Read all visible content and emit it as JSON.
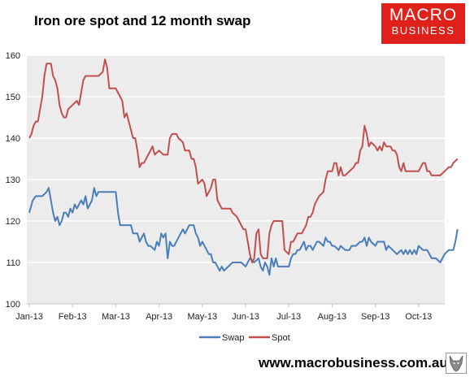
{
  "title": "Iron ore spot and 12 month swap",
  "logo": {
    "line1": "MACRO",
    "line2": "BUSINESS",
    "color": "#e0201b"
  },
  "footer": {
    "url": "www.macrobusiness.com.au"
  },
  "mascot_icon": "wolf-icon",
  "chart_data": {
    "type": "line",
    "title": "Iron ore spot and 12 month swap",
    "ylim": [
      100,
      160
    ],
    "yticks": [
      100,
      110,
      120,
      130,
      140,
      150,
      160
    ],
    "xlim": [
      0,
      9.7
    ],
    "xtick_labels": [
      "Jan-13",
      "Feb-13",
      "Mar-13",
      "Apr-13",
      "May-13",
      "Jun-13",
      "Jul-13",
      "Aug-13",
      "Sep-13",
      "Oct-13"
    ],
    "grid": true,
    "legend": "bottom-center",
    "series": [
      {
        "name": "Swap",
        "color": "#4a7ebb",
        "points": [
          [
            0.0,
            122
          ],
          [
            0.08,
            125
          ],
          [
            0.15,
            126
          ],
          [
            0.3,
            126
          ],
          [
            0.4,
            127
          ],
          [
            0.45,
            128
          ],
          [
            0.5,
            125
          ],
          [
            0.55,
            122
          ],
          [
            0.6,
            120
          ],
          [
            0.65,
            121
          ],
          [
            0.7,
            119
          ],
          [
            0.75,
            120
          ],
          [
            0.8,
            122
          ],
          [
            0.85,
            122
          ],
          [
            0.9,
            121
          ],
          [
            0.95,
            123
          ],
          [
            1.0,
            122
          ],
          [
            1.05,
            124
          ],
          [
            1.1,
            123
          ],
          [
            1.15,
            124
          ],
          [
            1.2,
            125
          ],
          [
            1.25,
            124
          ],
          [
            1.3,
            126
          ],
          [
            1.35,
            123
          ],
          [
            1.4,
            124
          ],
          [
            1.45,
            125
          ],
          [
            1.5,
            128
          ],
          [
            1.55,
            126
          ],
          [
            1.6,
            127
          ],
          [
            1.65,
            127
          ],
          [
            1.9,
            127
          ],
          [
            2.0,
            127
          ],
          [
            2.05,
            122
          ],
          [
            2.1,
            119
          ],
          [
            2.2,
            119
          ],
          [
            2.35,
            119
          ],
          [
            2.4,
            117
          ],
          [
            2.5,
            117
          ],
          [
            2.55,
            115
          ],
          [
            2.6,
            116
          ],
          [
            2.65,
            117
          ],
          [
            2.7,
            115
          ],
          [
            2.75,
            114
          ],
          [
            2.8,
            114
          ],
          [
            2.9,
            113
          ],
          [
            2.95,
            115
          ],
          [
            3.0,
            114
          ],
          [
            3.05,
            117
          ],
          [
            3.1,
            116
          ],
          [
            3.15,
            117
          ],
          [
            3.2,
            111
          ],
          [
            3.25,
            115
          ],
          [
            3.3,
            114
          ],
          [
            3.35,
            114
          ],
          [
            3.45,
            116
          ],
          [
            3.5,
            117
          ],
          [
            3.55,
            118
          ],
          [
            3.6,
            117
          ],
          [
            3.65,
            118
          ],
          [
            3.7,
            119
          ],
          [
            3.8,
            119
          ],
          [
            3.85,
            117
          ],
          [
            3.9,
            116
          ],
          [
            3.95,
            114
          ],
          [
            4.0,
            115
          ],
          [
            4.05,
            114
          ],
          [
            4.1,
            113
          ],
          [
            4.15,
            112
          ],
          [
            4.2,
            112
          ],
          [
            4.25,
            110
          ],
          [
            4.3,
            110
          ],
          [
            4.4,
            108
          ],
          [
            4.45,
            109
          ],
          [
            4.5,
            108
          ],
          [
            4.6,
            109
          ],
          [
            4.7,
            110
          ],
          [
            4.8,
            110
          ],
          [
            4.9,
            110
          ],
          [
            5.0,
            109
          ],
          [
            5.05,
            110
          ],
          [
            5.1,
            111
          ],
          [
            5.2,
            110
          ],
          [
            5.3,
            111
          ],
          [
            5.35,
            109
          ],
          [
            5.4,
            108
          ],
          [
            5.45,
            110
          ],
          [
            5.5,
            109
          ],
          [
            5.55,
            107
          ],
          [
            5.6,
            111
          ],
          [
            5.65,
            109
          ],
          [
            5.7,
            111
          ],
          [
            5.75,
            109
          ],
          [
            5.8,
            109
          ],
          [
            5.9,
            109
          ],
          [
            6.0,
            109
          ],
          [
            6.05,
            111
          ],
          [
            6.1,
            112
          ],
          [
            6.15,
            112
          ],
          [
            6.2,
            113
          ],
          [
            6.25,
            113
          ],
          [
            6.3,
            114
          ],
          [
            6.35,
            115
          ],
          [
            6.4,
            113
          ],
          [
            6.45,
            114
          ],
          [
            6.5,
            114
          ],
          [
            6.55,
            113
          ],
          [
            6.6,
            114
          ],
          [
            6.65,
            115
          ],
          [
            6.7,
            115
          ],
          [
            6.8,
            114
          ],
          [
            6.85,
            116
          ],
          [
            6.9,
            115
          ],
          [
            6.95,
            115
          ],
          [
            7.0,
            114
          ],
          [
            7.05,
            114
          ],
          [
            7.15,
            113
          ],
          [
            7.2,
            114
          ],
          [
            7.3,
            113
          ],
          [
            7.4,
            113
          ],
          [
            7.45,
            114
          ],
          [
            7.55,
            114
          ],
          [
            7.65,
            115
          ],
          [
            7.7,
            115
          ],
          [
            7.75,
            116
          ],
          [
            7.8,
            114
          ],
          [
            7.85,
            116
          ],
          [
            7.9,
            115
          ],
          [
            8.0,
            114
          ],
          [
            8.05,
            115
          ],
          [
            8.1,
            115
          ],
          [
            8.2,
            115
          ],
          [
            8.25,
            113
          ],
          [
            8.3,
            114
          ],
          [
            8.4,
            113
          ],
          [
            8.5,
            112
          ],
          [
            8.6,
            113
          ],
          [
            8.65,
            112
          ],
          [
            8.7,
            113
          ],
          [
            8.75,
            112
          ],
          [
            8.8,
            113
          ],
          [
            8.85,
            112
          ],
          [
            8.9,
            113
          ],
          [
            8.95,
            112
          ],
          [
            9.0,
            114
          ],
          [
            9.1,
            113
          ],
          [
            9.2,
            113
          ],
          [
            9.3,
            111
          ],
          [
            9.4,
            111
          ],
          [
            9.5,
            110
          ],
          [
            9.55,
            111
          ],
          [
            9.6,
            112
          ],
          [
            9.7,
            113
          ],
          [
            9.8,
            113
          ],
          [
            9.85,
            115
          ],
          [
            9.9,
            118
          ]
        ]
      },
      {
        "name": "Spot",
        "color": "#c0504d",
        "points": [
          [
            0.0,
            140
          ],
          [
            0.05,
            141
          ],
          [
            0.1,
            143
          ],
          [
            0.15,
            144
          ],
          [
            0.2,
            144
          ],
          [
            0.25,
            147
          ],
          [
            0.3,
            150
          ],
          [
            0.35,
            155
          ],
          [
            0.4,
            158
          ],
          [
            0.5,
            158
          ],
          [
            0.55,
            155
          ],
          [
            0.6,
            154
          ],
          [
            0.65,
            152
          ],
          [
            0.7,
            148
          ],
          [
            0.75,
            146
          ],
          [
            0.8,
            145
          ],
          [
            0.85,
            145
          ],
          [
            0.9,
            147
          ],
          [
            1.0,
            148
          ],
          [
            1.1,
            149
          ],
          [
            1.15,
            148
          ],
          [
            1.2,
            151
          ],
          [
            1.25,
            154
          ],
          [
            1.3,
            155
          ],
          [
            1.35,
            155
          ],
          [
            1.4,
            155
          ],
          [
            1.5,
            155
          ],
          [
            1.55,
            155
          ],
          [
            1.6,
            155
          ],
          [
            1.7,
            156
          ],
          [
            1.75,
            159
          ],
          [
            1.8,
            157
          ],
          [
            1.85,
            152
          ],
          [
            1.9,
            152
          ],
          [
            2.0,
            152
          ],
          [
            2.1,
            150
          ],
          [
            2.15,
            149
          ],
          [
            2.2,
            145
          ],
          [
            2.25,
            146
          ],
          [
            2.3,
            144
          ],
          [
            2.35,
            142
          ],
          [
            2.4,
            140
          ],
          [
            2.45,
            140
          ],
          [
            2.5,
            137
          ],
          [
            2.55,
            133
          ],
          [
            2.6,
            134
          ],
          [
            2.65,
            134
          ],
          [
            2.75,
            136
          ],
          [
            2.8,
            137
          ],
          [
            2.85,
            138
          ],
          [
            2.9,
            136
          ],
          [
            3.0,
            137
          ],
          [
            3.1,
            136
          ],
          [
            3.2,
            136
          ],
          [
            3.25,
            140
          ],
          [
            3.3,
            141
          ],
          [
            3.35,
            141
          ],
          [
            3.4,
            141
          ],
          [
            3.45,
            140
          ],
          [
            3.55,
            139
          ],
          [
            3.6,
            137
          ],
          [
            3.7,
            137
          ],
          [
            3.75,
            135
          ],
          [
            3.8,
            135
          ],
          [
            3.85,
            133
          ],
          [
            3.9,
            129
          ],
          [
            4.0,
            130
          ],
          [
            4.05,
            129
          ],
          [
            4.1,
            126
          ],
          [
            4.15,
            127
          ],
          [
            4.2,
            128
          ],
          [
            4.25,
            130
          ],
          [
            4.3,
            130
          ],
          [
            4.35,
            125
          ],
          [
            4.45,
            123
          ],
          [
            4.55,
            123
          ],
          [
            4.65,
            123
          ],
          [
            4.7,
            122
          ],
          [
            4.8,
            121
          ],
          [
            4.85,
            120
          ],
          [
            4.9,
            119
          ],
          [
            4.95,
            118
          ],
          [
            5.0,
            118
          ],
          [
            5.05,
            115
          ],
          [
            5.1,
            112
          ],
          [
            5.15,
            110
          ],
          [
            5.2,
            111
          ],
          [
            5.25,
            117
          ],
          [
            5.3,
            118
          ],
          [
            5.35,
            112
          ],
          [
            5.4,
            111
          ],
          [
            5.45,
            111
          ],
          [
            5.5,
            111
          ],
          [
            5.55,
            117
          ],
          [
            5.6,
            119
          ],
          [
            5.65,
            120
          ],
          [
            5.7,
            120
          ],
          [
            5.75,
            120
          ],
          [
            5.85,
            120
          ],
          [
            5.9,
            113
          ],
          [
            6.0,
            112
          ],
          [
            6.05,
            115
          ],
          [
            6.1,
            115
          ],
          [
            6.15,
            116
          ],
          [
            6.2,
            117
          ],
          [
            6.3,
            117
          ],
          [
            6.35,
            118
          ],
          [
            6.4,
            119
          ],
          [
            6.45,
            121
          ],
          [
            6.5,
            121
          ],
          [
            6.55,
            122
          ],
          [
            6.6,
            124
          ],
          [
            6.7,
            126
          ],
          [
            6.8,
            127
          ],
          [
            6.85,
            130
          ],
          [
            6.9,
            132
          ],
          [
            6.95,
            132
          ],
          [
            7.0,
            132
          ],
          [
            7.05,
            134
          ],
          [
            7.1,
            134
          ],
          [
            7.15,
            131
          ],
          [
            7.2,
            133
          ],
          [
            7.25,
            131
          ],
          [
            7.3,
            131
          ],
          [
            7.4,
            132
          ],
          [
            7.5,
            133
          ],
          [
            7.55,
            134
          ],
          [
            7.6,
            134
          ],
          [
            7.65,
            137
          ],
          [
            7.7,
            138
          ],
          [
            7.75,
            143
          ],
          [
            7.8,
            141
          ],
          [
            7.85,
            138
          ],
          [
            7.9,
            139
          ],
          [
            8.0,
            138
          ],
          [
            8.05,
            137
          ],
          [
            8.1,
            138
          ],
          [
            8.15,
            137
          ],
          [
            8.2,
            139
          ],
          [
            8.25,
            138
          ],
          [
            8.35,
            138
          ],
          [
            8.4,
            137
          ],
          [
            8.45,
            137
          ],
          [
            8.5,
            136
          ],
          [
            8.55,
            133
          ],
          [
            8.6,
            132
          ],
          [
            8.65,
            134
          ],
          [
            8.7,
            132
          ],
          [
            8.75,
            132
          ],
          [
            8.85,
            132
          ],
          [
            8.95,
            132
          ],
          [
            9.0,
            132
          ],
          [
            9.05,
            133
          ],
          [
            9.1,
            134
          ],
          [
            9.15,
            134
          ],
          [
            9.2,
            132
          ],
          [
            9.25,
            132
          ],
          [
            9.3,
            131
          ],
          [
            9.5,
            131
          ],
          [
            9.6,
            132
          ],
          [
            9.7,
            133
          ],
          [
            9.75,
            133
          ],
          [
            9.8,
            134
          ],
          [
            9.9,
            135
          ]
        ]
      }
    ]
  }
}
